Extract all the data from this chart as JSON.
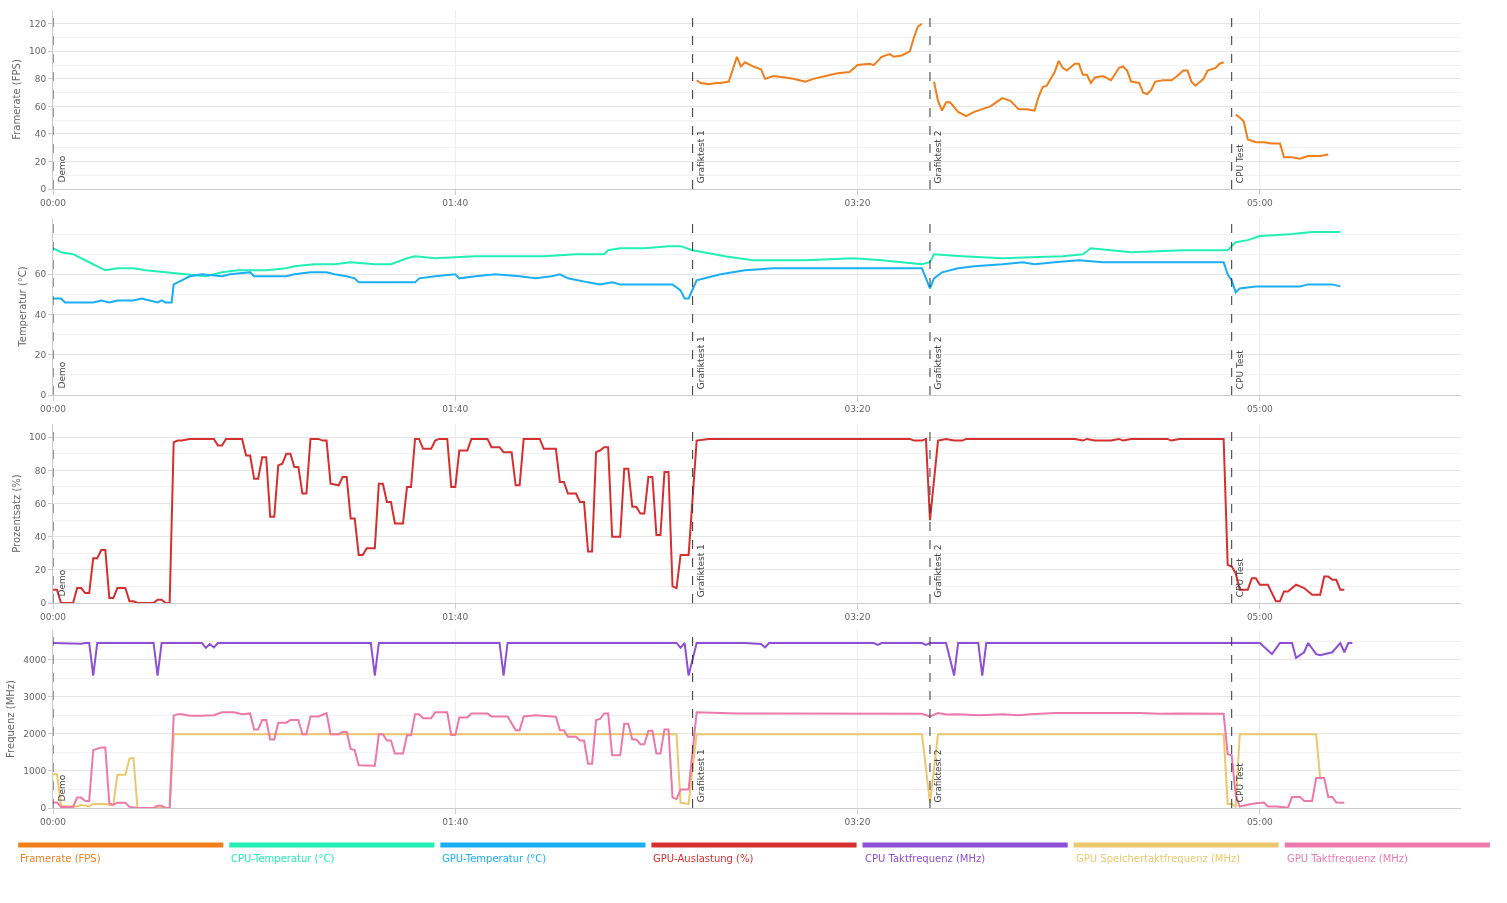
{
  "chart_data": [
    {
      "type": "line",
      "ylabel": "Framerate (FPS)",
      "xlim": [
        0,
        350
      ],
      "xticks": [
        {
          "value": 0,
          "label": "00:00"
        },
        {
          "value": 100,
          "label": "01:40"
        },
        {
          "value": 200,
          "label": "03:20"
        },
        {
          "value": 300,
          "label": "05:00"
        }
      ],
      "ylim": [
        0,
        130
      ],
      "yticks": [
        0,
        20,
        40,
        60,
        80,
        100,
        120
      ],
      "grid": true,
      "legend": "bottom",
      "marker": "none",
      "line_style": "solid",
      "ref_lines": [
        {
          "axis": "x",
          "value": 0,
          "label": "Demo",
          "color": "#333333",
          "line_style": "dashed"
        },
        {
          "axis": "x",
          "value": 159,
          "label": "Grafiktest 1",
          "color": "#333333",
          "line_style": "dashed"
        },
        {
          "axis": "x",
          "value": 218,
          "label": "Grafiktest 2",
          "color": "#333333",
          "line_style": "dashed"
        },
        {
          "axis": "x",
          "value": 293,
          "label": "CPU Test",
          "color": "#333333",
          "line_style": "dashed"
        }
      ],
      "series": [
        {
          "name": "Framerate (FPS)",
          "color": "#f07f1b",
          "x": [
            160,
            161,
            163,
            165,
            166,
            168,
            170,
            171,
            172,
            174,
            176,
            177,
            179,
            182,
            184,
            187,
            189,
            192,
            195,
            198,
            200,
            203,
            204,
            206,
            208,
            209,
            211,
            213,
            214,
            215,
            216,
            217.5,
            219,
            220,
            221,
            222,
            223,
            225,
            227,
            229,
            231,
            233,
            235,
            236,
            238,
            240,
            242,
            244,
            245,
            246,
            247,
            249,
            250,
            251,
            252,
            254,
            255,
            256,
            257,
            258,
            259,
            261,
            263,
            265,
            266,
            267,
            268,
            270,
            271,
            272,
            273,
            274,
            276,
            278,
            279,
            281,
            282,
            283,
            284,
            286,
            287,
            289,
            290,
            291,
            292.5,
            294,
            295,
            296,
            297,
            299,
            301,
            303,
            305,
            306,
            308,
            310,
            312,
            315,
            317
          ],
          "values": [
            79,
            77,
            76,
            77,
            77,
            78,
            96,
            89,
            92,
            89,
            87,
            80,
            82,
            81,
            80,
            78,
            80,
            82,
            84,
            85,
            90,
            91,
            90,
            96,
            98,
            96,
            97,
            100,
            110,
            118,
            120,
            null,
            78,
            64,
            57,
            63,
            63,
            56,
            53,
            56,
            58,
            60,
            64,
            66,
            64,
            58,
            58,
            57,
            67,
            74,
            75,
            85,
            93,
            88,
            86,
            91,
            91,
            83,
            83,
            77,
            81,
            82,
            79,
            88,
            89,
            86,
            78,
            77,
            70,
            69,
            72,
            78,
            79,
            79,
            81,
            86,
            86,
            78,
            75,
            80,
            86,
            88,
            91,
            92,
            null,
            54,
            52,
            49,
            36,
            34,
            34,
            33,
            33,
            23,
            23,
            22,
            24,
            24,
            25
          ]
        }
      ]
    },
    {
      "type": "line",
      "ylabel": "Temperatur (°C)",
      "xlim": [
        0,
        350
      ],
      "xticks": [
        {
          "value": 0,
          "label": "00:00"
        },
        {
          "value": 100,
          "label": "01:40"
        },
        {
          "value": 200,
          "label": "03:20"
        },
        {
          "value": 300,
          "label": "05:00"
        }
      ],
      "ylim": [
        0,
        88
      ],
      "yticks": [
        0,
        20,
        40,
        60
      ],
      "grid": true,
      "legend": "bottom",
      "marker": "none",
      "line_style": "solid",
      "ref_lines": [
        {
          "axis": "x",
          "value": 0,
          "label": "Demo",
          "color": "#333333",
          "line_style": "dashed"
        },
        {
          "axis": "x",
          "value": 159,
          "label": "Grafiktest 1",
          "color": "#333333",
          "line_style": "dashed"
        },
        {
          "axis": "x",
          "value": 218,
          "label": "Grafiktest 2",
          "color": "#333333",
          "line_style": "dashed"
        },
        {
          "axis": "x",
          "value": 293,
          "label": "CPU Test",
          "color": "#333333",
          "line_style": "dashed"
        }
      ],
      "series": [
        {
          "name": "CPU-Temperatur (°C)",
          "color": "#22efb4",
          "x": [
            0,
            2,
            5,
            8,
            13,
            16,
            20,
            23,
            28,
            33,
            38,
            42,
            46,
            53,
            58,
            60,
            65,
            70,
            74,
            80,
            84,
            88,
            90,
            95,
            105,
            115,
            122,
            130,
            137,
            138,
            141,
            147,
            153,
            156,
            159,
            167,
            174,
            187,
            199,
            206,
            216,
            218,
            219,
            226,
            236,
            251,
            256,
            258,
            263,
            268,
            281,
            292,
            294,
            297,
            300,
            308,
            313,
            320
          ],
          "values": [
            73,
            71,
            70,
            67,
            62,
            63,
            63,
            62,
            61,
            60,
            59,
            61,
            62,
            62,
            63,
            64,
            65,
            65,
            66,
            65,
            65,
            68,
            69,
            68,
            69,
            69,
            69,
            70,
            70,
            72,
            73,
            73,
            74,
            74,
            72,
            69,
            67,
            67,
            68,
            67,
            65,
            66,
            70,
            69,
            68,
            69,
            70,
            73,
            72,
            71,
            72,
            72,
            76,
            77,
            79,
            80,
            81,
            81
          ]
        },
        {
          "name": "GPU-Temperatur (°C)",
          "color": "#1aaef5",
          "x": [
            0,
            2,
            3,
            10,
            12,
            14,
            16,
            20,
            22,
            24,
            26,
            27,
            28,
            29.5,
            30,
            32,
            34,
            37,
            42,
            44,
            49,
            50,
            58,
            60,
            64,
            68,
            70,
            73,
            75,
            76,
            90,
            91,
            95,
            100,
            101,
            105,
            110,
            116,
            120,
            124,
            126,
            128,
            133,
            136,
            139,
            141,
            154,
            156,
            157,
            158,
            160,
            162,
            166,
            172,
            179,
            216,
            218,
            219,
            221,
            225,
            229,
            236,
            241,
            244,
            249,
            255,
            261,
            291,
            292,
            293,
            294,
            295,
            299,
            310,
            312,
            318,
            320
          ],
          "values": [
            48,
            48,
            46,
            46,
            47,
            46,
            47,
            47,
            48,
            47,
            46,
            47,
            46,
            46,
            55,
            57,
            59,
            60,
            59,
            60,
            61,
            59,
            59,
            60,
            61,
            61,
            60,
            59,
            58,
            56,
            56,
            58,
            59,
            60,
            58,
            59,
            60,
            59,
            58,
            59,
            60,
            58,
            56,
            55,
            56,
            55,
            55,
            52,
            48,
            48,
            57,
            58,
            60,
            62,
            63,
            63,
            53,
            58,
            61,
            63,
            64,
            65,
            66,
            65,
            66,
            67,
            66,
            66,
            60,
            57,
            51,
            53,
            54,
            54,
            55,
            55,
            54
          ]
        }
      ]
    },
    {
      "type": "line",
      "ylabel": "Prozentsatz (%)",
      "xlim": [
        0,
        350
      ],
      "xticks": [
        {
          "value": 0,
          "label": "00:00"
        },
        {
          "value": 100,
          "label": "01:40"
        },
        {
          "value": 200,
          "label": "03:20"
        },
        {
          "value": 300,
          "label": "05:00"
        }
      ],
      "ylim": [
        0,
        108
      ],
      "yticks": [
        0,
        20,
        40,
        60,
        80,
        100
      ],
      "grid": true,
      "legend": "bottom",
      "marker": "none",
      "line_style": "solid",
      "ref_lines": [
        {
          "axis": "x",
          "value": 0,
          "label": "Demo",
          "color": "#333333",
          "line_style": "dashed"
        },
        {
          "axis": "x",
          "value": 159,
          "label": "Grafiktest 1",
          "color": "#333333",
          "line_style": "dashed"
        },
        {
          "axis": "x",
          "value": 218,
          "label": "Grafiktest 2",
          "color": "#333333",
          "line_style": "dashed"
        },
        {
          "axis": "x",
          "value": 293,
          "label": "CPU Test",
          "color": "#333333",
          "line_style": "dashed"
        }
      ],
      "series": [
        {
          "name": "GPU-Auslastung (%)",
          "color": "#d62f2f",
          "x": [
            0,
            1,
            2,
            5,
            6,
            7,
            8,
            9,
            10,
            11,
            12,
            13,
            14,
            15,
            16,
            18,
            19,
            20,
            21,
            25,
            26,
            27,
            28,
            29,
            30,
            31,
            32,
            34,
            40,
            41,
            42,
            43,
            47,
            48,
            49,
            50,
            51,
            52,
            53,
            54,
            55,
            56,
            57,
            58,
            59,
            60,
            61,
            62,
            63,
            64,
            66,
            67,
            68,
            69,
            71,
            72,
            73,
            74,
            75,
            76,
            77,
            78,
            80,
            81,
            82,
            83,
            84,
            85,
            87,
            88,
            89,
            90,
            91,
            92,
            94,
            95,
            96,
            98,
            99,
            100,
            101,
            103,
            104,
            108,
            109,
            111,
            112,
            114,
            115,
            116,
            117,
            121,
            122,
            125,
            126,
            127,
            128,
            130,
            131,
            132,
            133,
            134,
            135,
            136,
            137,
            138,
            139,
            141,
            142,
            143,
            144,
            145,
            146,
            147,
            148,
            149,
            150,
            151,
            152,
            153,
            154,
            155,
            156,
            158,
            160,
            163,
            213,
            214,
            216,
            217,
            218,
            220,
            222,
            224,
            226,
            227,
            254,
            256,
            257,
            259,
            263,
            265,
            266,
            268,
            277,
            278,
            280,
            291,
            292,
            293,
            294,
            295,
            297,
            298,
            299,
            300,
            302,
            304,
            305,
            306,
            307,
            309,
            310,
            311,
            313,
            315,
            316,
            317,
            318,
            319,
            320,
            321
          ],
          "values": [
            8,
            8,
            0,
            0,
            9,
            9,
            6,
            6,
            27,
            27,
            32,
            32,
            3,
            3,
            9,
            9,
            1,
            1,
            0,
            0,
            2,
            2,
            0,
            0,
            97,
            98,
            98,
            99,
            99,
            95,
            95,
            99,
            99,
            89,
            89,
            75,
            75,
            88,
            88,
            52,
            52,
            83,
            84,
            90,
            90,
            82,
            82,
            66,
            66,
            99,
            99,
            98,
            98,
            72,
            71,
            76,
            76,
            51,
            51,
            29,
            29,
            33,
            33,
            72,
            72,
            61,
            61,
            48,
            48,
            70,
            70,
            99,
            99,
            93,
            93,
            98,
            99,
            99,
            70,
            70,
            92,
            92,
            99,
            99,
            94,
            94,
            91,
            91,
            71,
            71,
            99,
            99,
            93,
            93,
            73,
            73,
            66,
            66,
            61,
            61,
            31,
            31,
            91,
            92,
            94,
            94,
            40,
            40,
            81,
            81,
            58,
            58,
            54,
            54,
            76,
            76,
            41,
            41,
            79,
            79,
            10,
            9,
            29,
            29,
            98,
            99,
            99,
            98,
            98,
            99,
            50,
            98,
            99,
            98,
            98,
            99,
            99,
            98,
            99,
            98,
            98,
            99,
            98,
            99,
            99,
            98,
            99,
            99,
            23,
            22,
            18,
            8,
            8,
            15,
            15,
            11,
            11,
            1,
            1,
            7,
            7,
            11,
            10,
            9,
            5,
            5,
            16,
            16,
            14,
            14,
            8,
            8
          ]
        }
      ]
    },
    {
      "type": "line",
      "ylabel": "Frequenz (MHz)",
      "xlim": [
        0,
        350
      ],
      "xticks": [
        {
          "value": 0,
          "label": "00:00"
        },
        {
          "value": 100,
          "label": "01:40"
        },
        {
          "value": 200,
          "label": "03:20"
        },
        {
          "value": 300,
          "label": "05:00"
        }
      ],
      "ylim": [
        0,
        4800
      ],
      "yticks": [
        0,
        1000,
        2000,
        3000,
        4000
      ],
      "grid": true,
      "legend": "bottom",
      "marker": "none",
      "line_style": "solid",
      "ref_lines": [
        {
          "axis": "x",
          "value": 0,
          "label": "Demo",
          "color": "#333333",
          "line_style": "dashed"
        },
        {
          "axis": "x",
          "value": 159,
          "label": "Grafiktest 1",
          "color": "#333333",
          "line_style": "dashed"
        },
        {
          "axis": "x",
          "value": 218,
          "label": "Grafiktest 2",
          "color": "#333333",
          "line_style": "dashed"
        },
        {
          "axis": "x",
          "value": 293,
          "label": "CPU Test",
          "color": "#333333",
          "line_style": "dashed"
        }
      ],
      "series": [
        {
          "name": "CPU Taktfrequenz (MHz)",
          "color": "#8e4fd6",
          "x": [
            0,
            7,
            8,
            9,
            10,
            11,
            25,
            26,
            27,
            37,
            38,
            39,
            40,
            41,
            79,
            80,
            81,
            111,
            112,
            113,
            155,
            156,
            157,
            158,
            160,
            172,
            176,
            177,
            178,
            204,
            205,
            206,
            216,
            217,
            218,
            222,
            224,
            225,
            230,
            231,
            232,
            300,
            303,
            305,
            308,
            309,
            311,
            312,
            314,
            315,
            318,
            320,
            321,
            322,
            323
          ],
          "values": [
            4450,
            4430,
            4450,
            4450,
            3570,
            4450,
            4450,
            3570,
            4450,
            4450,
            4320,
            4420,
            4330,
            4450,
            4450,
            3570,
            4450,
            4450,
            3570,
            4450,
            4450,
            4320,
            4450,
            3570,
            4450,
            4450,
            4420,
            4330,
            4450,
            4450,
            4400,
            4450,
            4450,
            4400,
            4450,
            4450,
            3570,
            4450,
            4450,
            3570,
            4450,
            4450,
            4150,
            4450,
            4450,
            4050,
            4200,
            4450,
            4150,
            4120,
            4200,
            4450,
            4200,
            4450,
            4450
          ]
        },
        {
          "name": "GPU Speichertaktfrequenz (MHz)",
          "color": "#ebc86e",
          "x": [
            0,
            1,
            2,
            4,
            6,
            7,
            9,
            10,
            13,
            14,
            15,
            16,
            18,
            19,
            20,
            21,
            29,
            30,
            155,
            156,
            158,
            160,
            216,
            218,
            220,
            291,
            292,
            293,
            294,
            295,
            314,
            315,
            316
          ],
          "values": [
            910,
            910,
            60,
            40,
            40,
            80,
            50,
            110,
            110,
            80,
            80,
            900,
            900,
            1330,
            1350,
            0,
            0,
            1990,
            1990,
            140,
            110,
            1990,
            1990,
            140,
            1990,
            1990,
            110,
            110,
            40,
            1990,
            1990,
            800,
            800
          ]
        },
        {
          "name": "GPU Taktfrequenz (MHz)",
          "color": "#ec79a9",
          "x": [
            0,
            1,
            2,
            5,
            6,
            7,
            8,
            9,
            10,
            12,
            13,
            14,
            15,
            16,
            18,
            19,
            21,
            25,
            26,
            27,
            28,
            29,
            30,
            31,
            32,
            34,
            37,
            40,
            42,
            45,
            47,
            49,
            50,
            51,
            52,
            53,
            54,
            55,
            56,
            58,
            59,
            61,
            62,
            63,
            64,
            66,
            68,
            69,
            71,
            72,
            73,
            74,
            75,
            76,
            80,
            81,
            82,
            83,
            84,
            85,
            87,
            88,
            89,
            90,
            91,
            92,
            94,
            95,
            98,
            99,
            100,
            101,
            103,
            104,
            108,
            109,
            113,
            115,
            116,
            117,
            120,
            125,
            126,
            127,
            128,
            130,
            131,
            132,
            133,
            134,
            135,
            136,
            137,
            138,
            139,
            141,
            142,
            143,
            144,
            145,
            146,
            147,
            148,
            149,
            150,
            151,
            152,
            153,
            154,
            155,
            156,
            158,
            160,
            170,
            216,
            218,
            220,
            222,
            225,
            230,
            232,
            236,
            240,
            243,
            249,
            270,
            275,
            280,
            291,
            292,
            293,
            294,
            295,
            297,
            299,
            301,
            302,
            304,
            306,
            307,
            308,
            310,
            311,
            313,
            314,
            316,
            317,
            318,
            319,
            321
          ],
          "values": [
            150,
            150,
            30,
            30,
            280,
            280,
            190,
            190,
            1560,
            1630,
            1630,
            120,
            90,
            140,
            140,
            30,
            0,
            0,
            60,
            60,
            0,
            0,
            2490,
            2530,
            2530,
            2490,
            2490,
            2500,
            2580,
            2580,
            2530,
            2550,
            2120,
            2120,
            2370,
            2370,
            1850,
            1850,
            2300,
            2300,
            2370,
            2370,
            1990,
            1990,
            2470,
            2470,
            2560,
            1990,
            1990,
            2050,
            2050,
            1590,
            1560,
            1150,
            1140,
            1990,
            1990,
            1820,
            1820,
            1470,
            1470,
            1960,
            1960,
            2530,
            2530,
            2420,
            2420,
            2580,
            2580,
            1970,
            1970,
            2440,
            2440,
            2550,
            2550,
            2470,
            2470,
            2100,
            2100,
            2470,
            2500,
            2460,
            2100,
            2100,
            1920,
            1920,
            1820,
            1820,
            1190,
            1190,
            2370,
            2400,
            2550,
            2550,
            1420,
            1420,
            2270,
            2270,
            1850,
            1850,
            1720,
            1720,
            2080,
            2080,
            1470,
            1470,
            2120,
            2120,
            280,
            240,
            500,
            500,
            2580,
            2550,
            2540,
            2470,
            2560,
            2520,
            2530,
            2500,
            2510,
            2530,
            2500,
            2530,
            2560,
            2560,
            2540,
            2550,
            2540,
            1450,
            1420,
            340,
            40,
            90,
            130,
            150,
            40,
            40,
            20,
            10,
            300,
            300,
            190,
            190,
            810,
            810,
            300,
            300,
            150,
            140
          ]
        }
      ]
    }
  ]
}
